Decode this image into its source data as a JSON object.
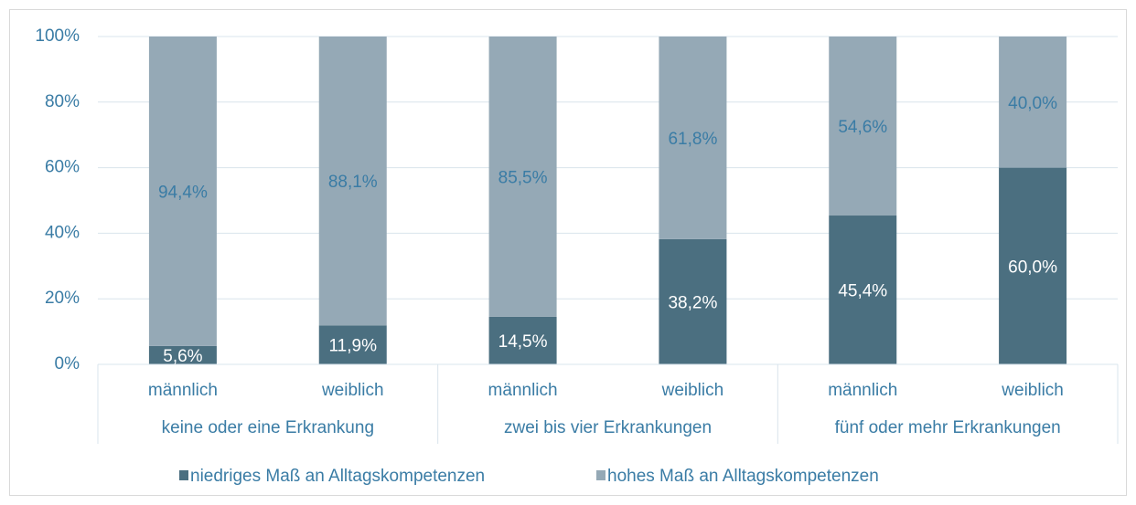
{
  "chart_data": {
    "type": "stacked_bar",
    "categories": [
      "männlich",
      "weiblich",
      "männlich",
      "weiblich",
      "männlich",
      "weiblich"
    ],
    "groups": [
      "keine oder eine Erkrankung",
      "zwei bis vier Erkrankungen",
      "fünf oder mehr Erkrankungen"
    ],
    "series": [
      {
        "name": "niedriges Maß an Alltagskompetenzen",
        "color": "#4b6f80",
        "values": [
          5.6,
          11.9,
          14.5,
          38.2,
          45.4,
          60.0
        ],
        "value_labels": [
          "5,6%",
          "11,9%",
          "14,5%",
          "38,2%",
          "45,4%",
          "60,0%"
        ]
      },
      {
        "name": "hohes Maß an Alltagskompetenzen",
        "color": "#95a9b6",
        "values": [
          94.4,
          88.1,
          85.5,
          61.8,
          54.6,
          40.0
        ],
        "value_labels": [
          "94,4%",
          "88,1%",
          "85,5%",
          "61,8%",
          "54,6%",
          "40,0%"
        ]
      }
    ],
    "ylim": [
      0,
      100
    ],
    "yticks": [
      {
        "value": 0,
        "label": "0%"
      },
      {
        "value": 20,
        "label": "20%"
      },
      {
        "value": 40,
        "label": "40%"
      },
      {
        "value": 60,
        "label": "60%"
      },
      {
        "value": 80,
        "label": "80%"
      },
      {
        "value": 100,
        "label": "100%"
      }
    ],
    "grid": true,
    "legend": "bottom"
  }
}
